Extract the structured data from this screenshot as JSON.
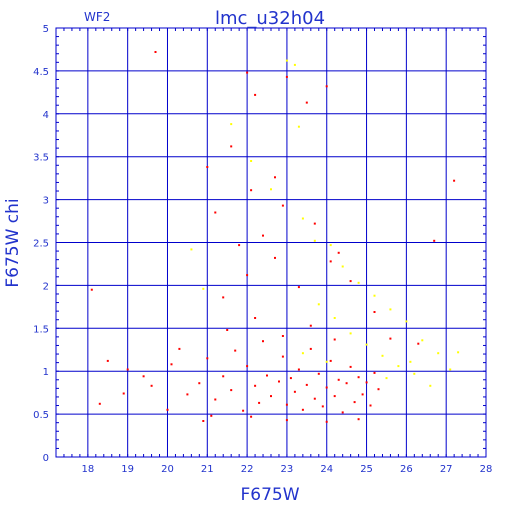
{
  "colors": {
    "axis": "#0000cc",
    "text": "#2233cc",
    "primary_points": "#ff0000",
    "secondary_points": "#ffff00",
    "background": "#ffffff"
  },
  "chart_data": {
    "type": "scatter",
    "title": "lmc_u32h04",
    "corner_label": "WF2",
    "xlabel": "F675W",
    "ylabel": "F675W chi",
    "xlim": [
      17.2,
      28.0
    ],
    "ylim": [
      0,
      5
    ],
    "xticks": [
      18,
      19,
      20,
      21,
      22,
      23,
      24,
      25,
      26,
      27,
      28
    ],
    "yticks": [
      0,
      0.5,
      1,
      1.5,
      2,
      2.5,
      3,
      3.5,
      4,
      4.5,
      5
    ],
    "grid": true,
    "series": [
      {
        "color": "#ff0000",
        "points": [
          [
            19.7,
            4.72
          ],
          [
            22.0,
            4.48
          ],
          [
            22.2,
            4.22
          ],
          [
            23.0,
            4.43
          ],
          [
            23.5,
            4.13
          ],
          [
            24.0,
            4.32
          ],
          [
            21.0,
            3.38
          ],
          [
            21.6,
            3.62
          ],
          [
            22.7,
            3.26
          ],
          [
            21.2,
            2.85
          ],
          [
            22.1,
            3.11
          ],
          [
            22.9,
            2.93
          ],
          [
            22.4,
            2.58
          ],
          [
            24.3,
            2.38
          ],
          [
            26.7,
            2.52
          ],
          [
            27.2,
            3.22
          ],
          [
            21.8,
            2.47
          ],
          [
            23.7,
            2.72
          ],
          [
            24.1,
            2.28
          ],
          [
            24.6,
            2.05
          ],
          [
            18.1,
            1.95
          ],
          [
            22.7,
            2.32
          ],
          [
            22.0,
            2.12
          ],
          [
            21.4,
            1.86
          ],
          [
            23.3,
            1.98
          ],
          [
            25.2,
            1.69
          ],
          [
            25.6,
            1.38
          ],
          [
            26.3,
            1.32
          ],
          [
            18.5,
            1.12
          ],
          [
            19.0,
            1.02
          ],
          [
            18.9,
            0.74
          ],
          [
            18.3,
            0.62
          ],
          [
            19.4,
            0.94
          ],
          [
            20.1,
            1.08
          ],
          [
            20.5,
            0.73
          ],
          [
            20.8,
            0.86
          ],
          [
            20.9,
            0.42
          ],
          [
            21.0,
            1.15
          ],
          [
            21.2,
            0.67
          ],
          [
            21.4,
            0.94
          ],
          [
            21.6,
            0.78
          ],
          [
            21.7,
            1.24
          ],
          [
            21.9,
            0.54
          ],
          [
            22.0,
            1.06
          ],
          [
            22.2,
            0.83
          ],
          [
            22.3,
            0.63
          ],
          [
            22.4,
            1.35
          ],
          [
            22.5,
            0.95
          ],
          [
            22.6,
            0.71
          ],
          [
            22.8,
            0.88
          ],
          [
            22.9,
            1.17
          ],
          [
            23.0,
            0.61
          ],
          [
            23.1,
            0.92
          ],
          [
            23.2,
            0.76
          ],
          [
            23.3,
            1.02
          ],
          [
            23.4,
            0.55
          ],
          [
            23.5,
            0.84
          ],
          [
            23.6,
            1.26
          ],
          [
            23.7,
            0.68
          ],
          [
            23.8,
            0.97
          ],
          [
            23.9,
            0.59
          ],
          [
            24.0,
            0.81
          ],
          [
            24.1,
            1.12
          ],
          [
            24.2,
            0.71
          ],
          [
            24.3,
            0.9
          ],
          [
            24.4,
            0.52
          ],
          [
            24.5,
            0.86
          ],
          [
            24.6,
            1.05
          ],
          [
            24.7,
            0.64
          ],
          [
            24.8,
            0.93
          ],
          [
            24.9,
            0.73
          ],
          [
            25.0,
            0.87
          ],
          [
            25.1,
            0.6
          ],
          [
            25.2,
            0.98
          ],
          [
            25.3,
            0.79
          ],
          [
            21.5,
            1.48
          ],
          [
            22.2,
            1.62
          ],
          [
            22.9,
            1.41
          ],
          [
            23.6,
            1.53
          ],
          [
            24.2,
            1.37
          ],
          [
            20.3,
            1.26
          ],
          [
            19.6,
            0.83
          ],
          [
            20.0,
            0.55
          ],
          [
            21.1,
            0.48
          ],
          [
            22.1,
            0.47
          ],
          [
            23.0,
            0.43
          ],
          [
            24.0,
            0.41
          ],
          [
            24.8,
            0.44
          ]
        ]
      },
      {
        "color": "#ffff00",
        "points": [
          [
            23.0,
            4.62
          ],
          [
            23.2,
            4.57
          ],
          [
            23.3,
            3.85
          ],
          [
            21.6,
            3.88
          ],
          [
            22.1,
            3.45
          ],
          [
            22.6,
            3.12
          ],
          [
            23.4,
            2.78
          ],
          [
            23.7,
            2.52
          ],
          [
            24.1,
            2.47
          ],
          [
            24.4,
            2.22
          ],
          [
            24.8,
            2.03
          ],
          [
            25.2,
            1.88
          ],
          [
            25.6,
            1.72
          ],
          [
            26.0,
            1.58
          ],
          [
            26.4,
            1.36
          ],
          [
            26.8,
            1.21
          ],
          [
            27.1,
            1.02
          ],
          [
            26.2,
            0.97
          ],
          [
            26.6,
            0.83
          ],
          [
            27.3,
            1.22
          ],
          [
            24.6,
            1.44
          ],
          [
            25.0,
            1.31
          ],
          [
            25.4,
            1.18
          ],
          [
            25.8,
            1.06
          ],
          [
            24.2,
            1.62
          ],
          [
            23.8,
            1.78
          ],
          [
            20.6,
            2.42
          ],
          [
            20.9,
            1.96
          ],
          [
            23.4,
            1.21
          ],
          [
            24.0,
            1.11
          ],
          [
            25.5,
            0.92
          ],
          [
            26.1,
            1.11
          ]
        ]
      }
    ]
  }
}
